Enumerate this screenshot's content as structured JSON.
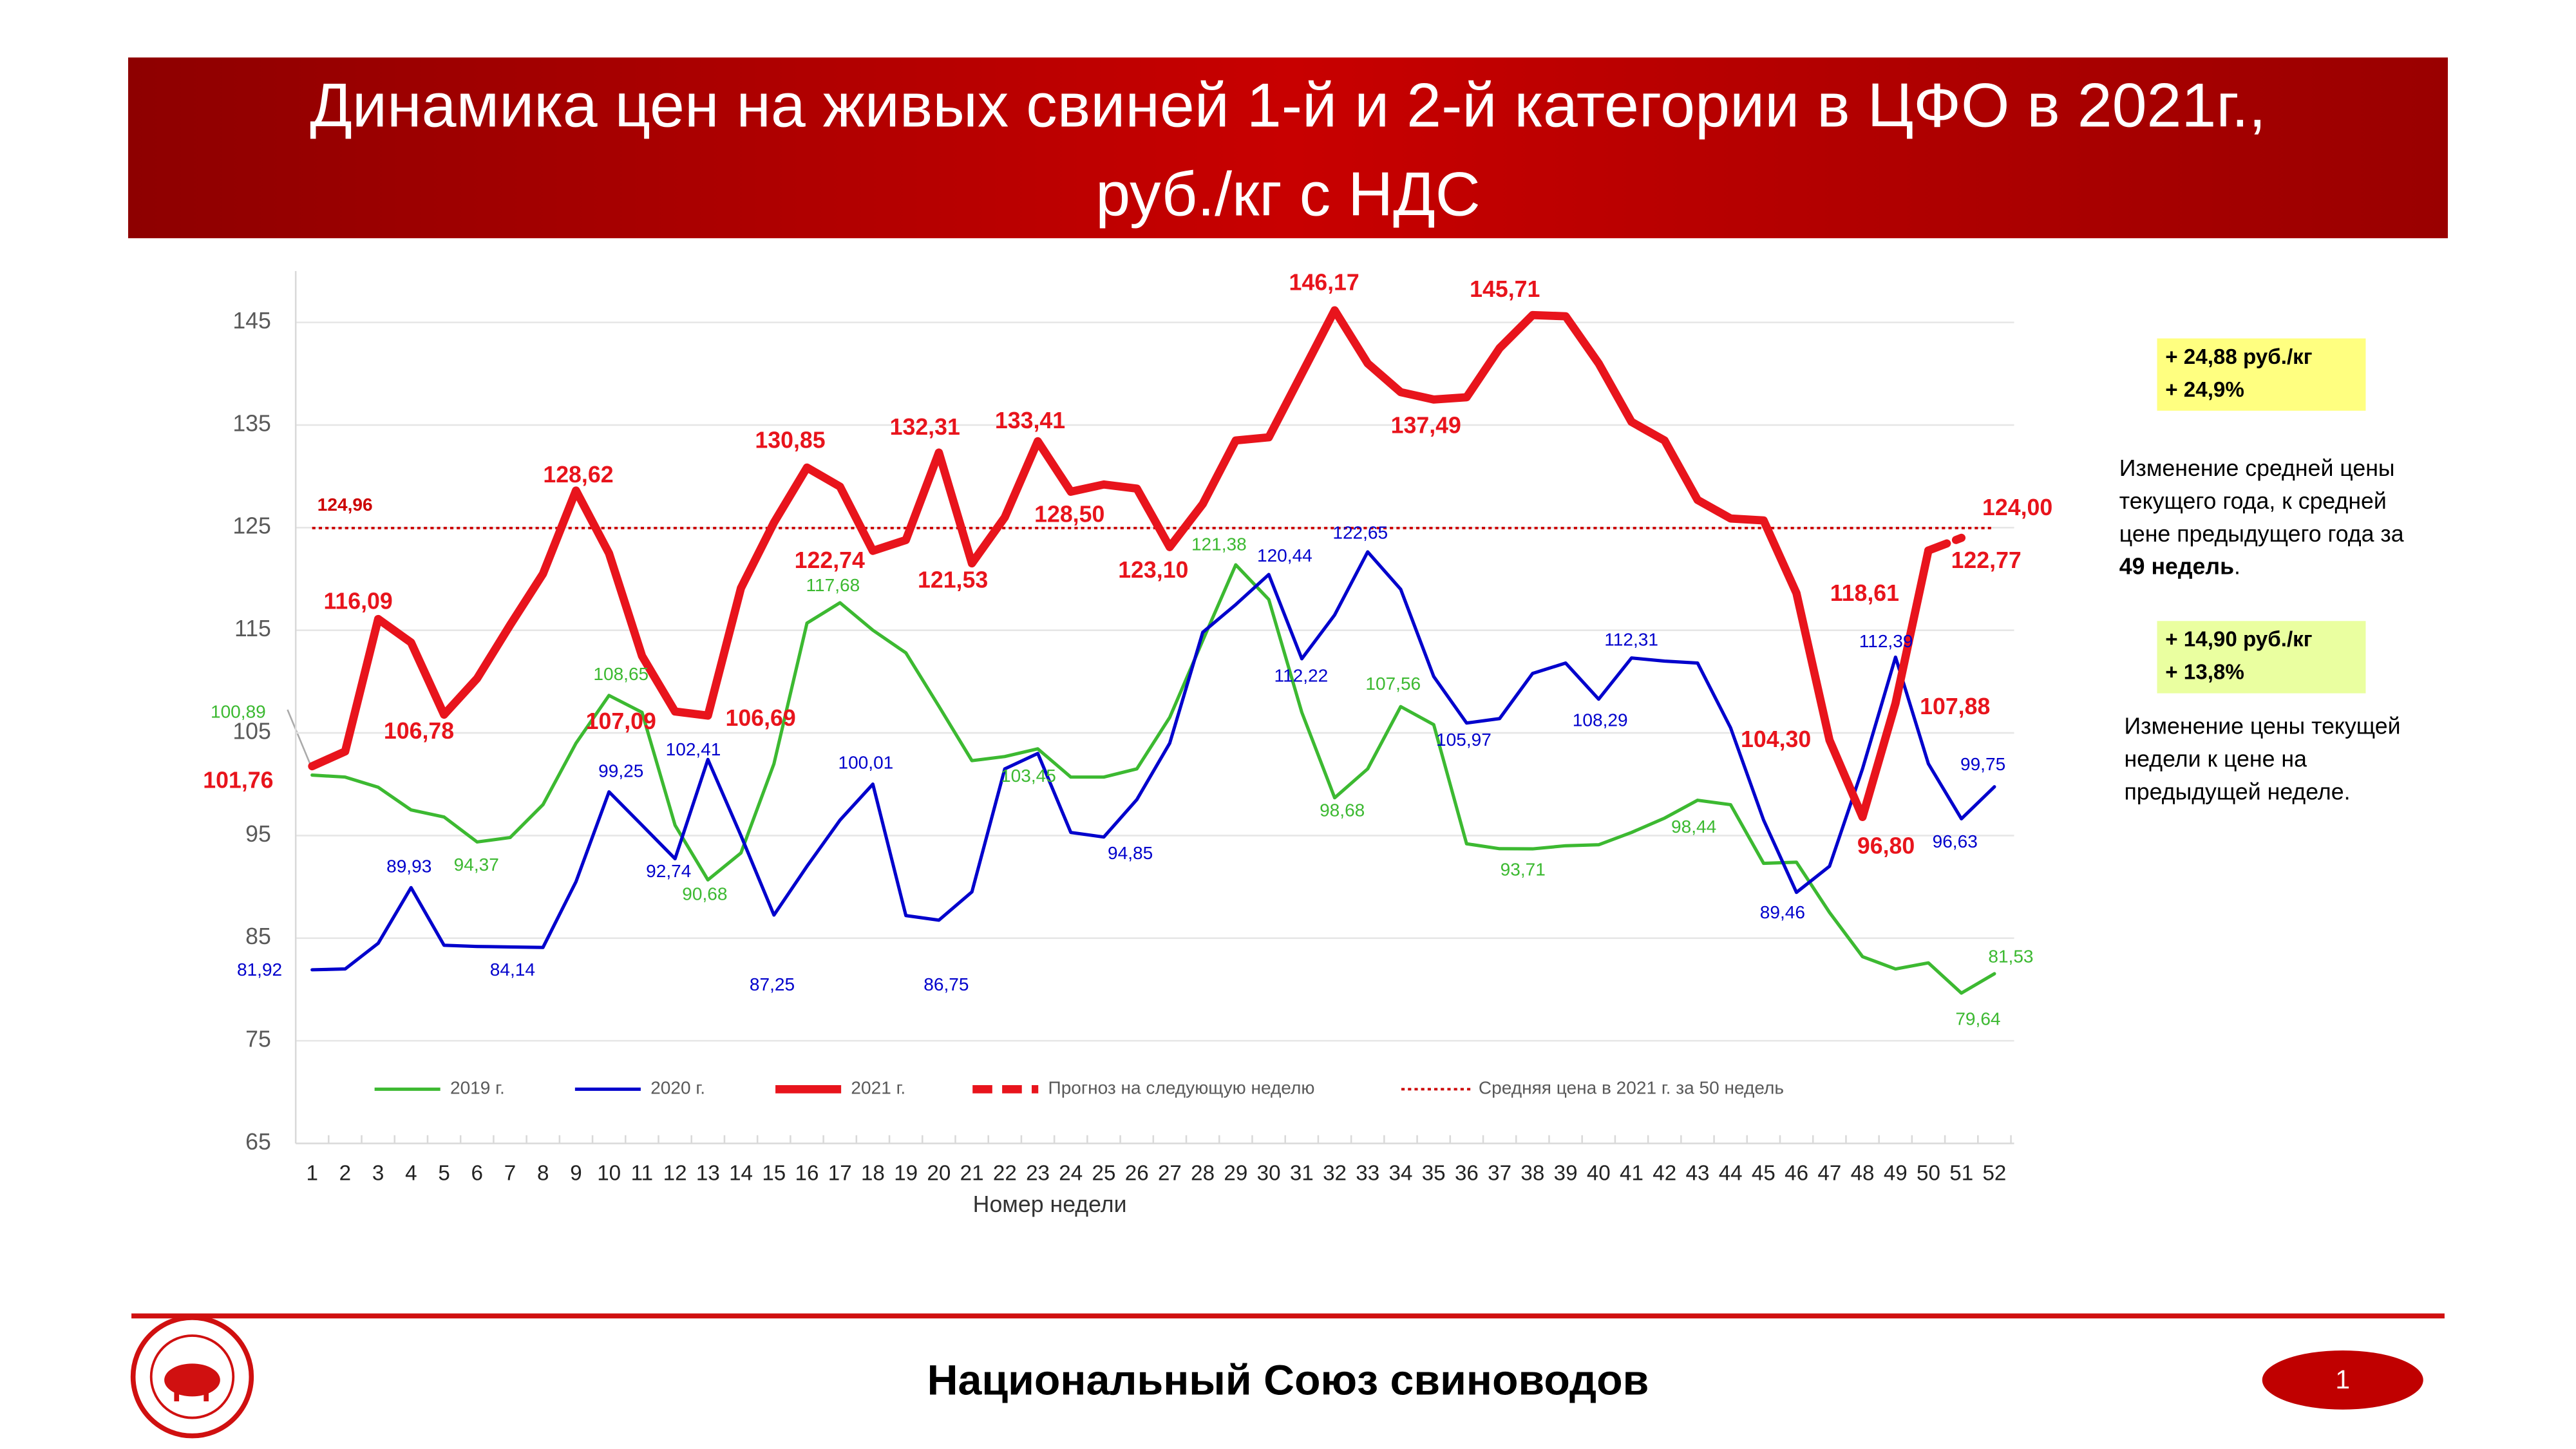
{
  "chart_data": {
    "type": "line",
    "title": [
      "Динамика цен на живых свиней 1-й и 2-й категории в ЦФО в 2021г.,",
      "руб./кг с НДС"
    ],
    "x_label": "Номер недели",
    "categories": [
      "1",
      "2",
      "3",
      "4",
      "5",
      "6",
      "7",
      "8",
      "9",
      "10",
      "11",
      "12",
      "13",
      "14",
      "15",
      "16",
      "17",
      "18",
      "19",
      "20",
      "21",
      "22",
      "23",
      "24",
      "25",
      "26",
      "27",
      "28",
      "29",
      "30",
      "31",
      "32",
      "33",
      "34",
      "35",
      "36",
      "37",
      "38",
      "39",
      "40",
      "41",
      "42",
      "43",
      "44",
      "45",
      "46",
      "47",
      "48",
      "49",
      "50",
      "51",
      "52"
    ],
    "ylim": [
      65,
      150
    ],
    "yticks": [
      65,
      75,
      85,
      95,
      105,
      115,
      125,
      135,
      145
    ],
    "grid": true,
    "series": [
      {
        "name": "2019 г.",
        "color": "#3cb931",
        "style": "solid",
        "values": [
          100.89,
          100.7,
          99.7,
          97.5,
          96.8,
          94.37,
          94.8,
          98,
          104,
          108.65,
          107,
          96,
          90.68,
          93.3,
          102,
          115.7,
          117.68,
          115,
          112.8,
          107.6,
          102.3,
          102.7,
          103.45,
          100.7,
          100.7,
          101.5,
          106.5,
          114,
          121.38,
          118,
          107,
          98.68,
          101.5,
          107.56,
          105.8,
          94.2,
          93.71,
          93.7,
          94,
          94.1,
          95.3,
          96.7,
          98.44,
          98,
          92.3,
          92.4,
          87.5,
          83.2,
          82,
          82.6,
          79.64,
          81.53
        ],
        "value_labels": [
          "100,89",
          null,
          null,
          null,
          null,
          "94,37",
          null,
          null,
          null,
          "108,65",
          null,
          null,
          "90,68",
          null,
          null,
          null,
          "117,68",
          null,
          null,
          null,
          null,
          null,
          "103,45",
          null,
          null,
          null,
          null,
          null,
          "121,38",
          null,
          null,
          "98,68",
          null,
          "107,56",
          null,
          null,
          "93,71",
          null,
          null,
          null,
          null,
          null,
          "98,44",
          null,
          null,
          null,
          null,
          null,
          null,
          null,
          "79,64",
          "81,53"
        ]
      },
      {
        "name": "2020 г.",
        "color": "#0000cc",
        "style": "solid",
        "values": [
          81.92,
          82,
          84.5,
          89.93,
          84.3,
          84.2,
          84.14,
          84.1,
          90.5,
          99.25,
          96,
          92.74,
          102.41,
          95,
          87.25,
          92,
          96.5,
          100.01,
          87.2,
          86.75,
          89.5,
          101.5,
          103,
          95.3,
          94.85,
          98.5,
          104,
          114.8,
          117.5,
          120.44,
          112.22,
          116.5,
          122.65,
          119,
          110.5,
          105.97,
          106.4,
          110.8,
          111.8,
          108.29,
          112.31,
          112,
          111.8,
          105.5,
          96.5,
          89.46,
          92,
          101.5,
          112.39,
          102,
          96.63,
          99.75
        ],
        "value_labels": [
          "81,92",
          null,
          null,
          "89,93",
          null,
          null,
          "84,14",
          null,
          null,
          "99,25",
          null,
          "92,74",
          "102,41",
          null,
          "87,25",
          null,
          null,
          "100,01",
          null,
          "86,75",
          null,
          null,
          null,
          null,
          "94,85",
          null,
          null,
          null,
          null,
          "120,44",
          "112,22",
          null,
          "122,65",
          null,
          null,
          "105,97",
          null,
          null,
          null,
          "108,29",
          "112,31",
          null,
          null,
          null,
          null,
          "89,46",
          null,
          null,
          "112,39",
          null,
          "96,63",
          "99,75"
        ]
      },
      {
        "name": "2021 г.",
        "color": "#e8141c",
        "style": "bold",
        "values": [
          101.76,
          103.2,
          116.09,
          113.8,
          106.78,
          110.3,
          115.5,
          120.5,
          128.62,
          122.5,
          112.5,
          107.09,
          106.69,
          119.1,
          125.5,
          130.85,
          129,
          122.74,
          123.8,
          132.31,
          121.53,
          126,
          133.41,
          128.5,
          129.2,
          128.8,
          123.1,
          127.3,
          133.5,
          133.8,
          140,
          146.17,
          141,
          138.2,
          137.49,
          137.7,
          142.5,
          145.71,
          145.6,
          141,
          135.3,
          133.5,
          127.7,
          125.9,
          125.7,
          118.61,
          104.3,
          96.8,
          107.88,
          122.77,
          null,
          null
        ],
        "value_labels": [
          "101,76",
          null,
          "116,09",
          null,
          "106,78",
          null,
          null,
          null,
          "128,62",
          null,
          null,
          "107,09",
          "106,69",
          null,
          null,
          "130,85",
          null,
          "122,74",
          null,
          "132,31",
          "121,53",
          null,
          "133,41",
          "128,50",
          null,
          null,
          "123,10",
          null,
          null,
          null,
          null,
          "146,17",
          null,
          null,
          "137,49",
          null,
          null,
          "145,71",
          null,
          null,
          null,
          null,
          null,
          null,
          null,
          "118,61",
          "104,30",
          "96,80",
          "107,88",
          "122,77",
          null,
          null
        ]
      },
      {
        "name": "Прогноз на следующую неделю",
        "color": "#e8141c",
        "style": "dashed",
        "values": [
          null,
          null,
          null,
          null,
          null,
          null,
          null,
          null,
          null,
          null,
          null,
          null,
          null,
          null,
          null,
          null,
          null,
          null,
          null,
          null,
          null,
          null,
          null,
          null,
          null,
          null,
          null,
          null,
          null,
          null,
          null,
          null,
          null,
          null,
          null,
          null,
          null,
          null,
          null,
          null,
          null,
          null,
          null,
          null,
          null,
          null,
          null,
          null,
          null,
          122.77,
          124,
          null
        ],
        "value_labels": [
          null,
          null,
          null,
          null,
          null,
          null,
          null,
          null,
          null,
          null,
          null,
          null,
          null,
          null,
          null,
          null,
          null,
          null,
          null,
          null,
          null,
          null,
          null,
          null,
          null,
          null,
          null,
          null,
          null,
          null,
          null,
          null,
          null,
          null,
          null,
          null,
          null,
          null,
          null,
          null,
          null,
          null,
          null,
          null,
          null,
          null,
          null,
          null,
          null,
          null,
          "124,00",
          null
        ]
      }
    ],
    "average": {
      "name": "Средняя цена в 2021 г. за 50 недель",
      "color": "#cc0000",
      "value": 124.96,
      "label": "124,96"
    },
    "annotations": [
      {
        "box": [
          "+ 24,88 руб./кг",
          "+ 24,9%"
        ],
        "box_color": "#ffff80",
        "lines": [
          "Изменение средней цены",
          "текущего года, к средней",
          "цене предыдущего года за"
        ],
        "bold": "49 недель",
        "tail": "."
      },
      {
        "box": [
          "+ 14,90 руб./кг",
          "+ 13,8%"
        ],
        "box_color": "#eaffa0",
        "lines": [
          "Изменение цены текущей",
          "недели к цене на",
          "предыдущей неделе."
        ]
      }
    ]
  },
  "footer": {
    "text": "Национальный Союз свиноводов",
    "page": "1"
  }
}
